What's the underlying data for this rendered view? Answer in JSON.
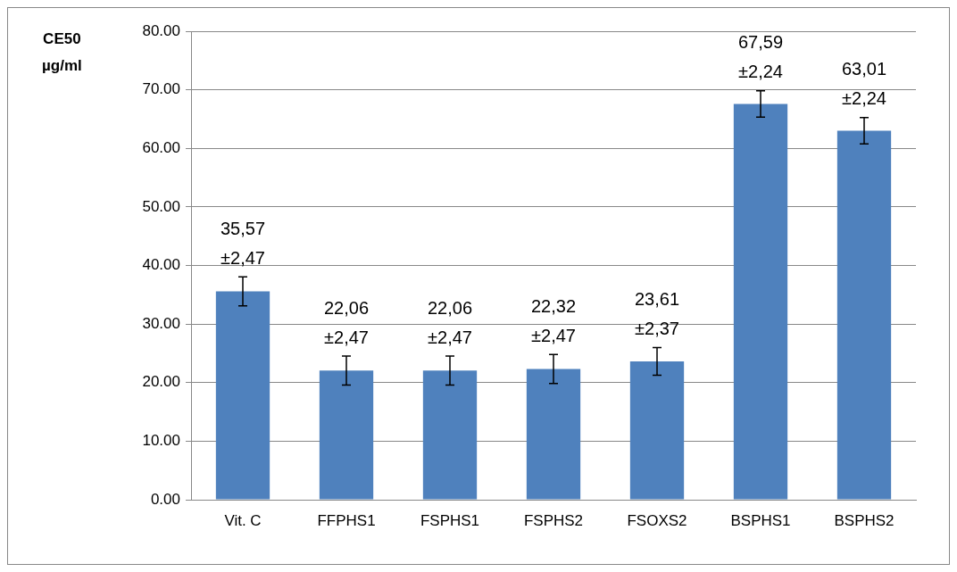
{
  "chart_data": {
    "type": "bar",
    "ylabel": "CE50\nµg/ml",
    "categories": [
      "Vit. C",
      "FFPHS1",
      "FSPHS1",
      "FSPHS2",
      "FSOXS2",
      "BSPHS1",
      "BSPHS2"
    ],
    "values": [
      35.57,
      22.06,
      22.06,
      22.32,
      23.61,
      67.59,
      63.01
    ],
    "errors": [
      2.47,
      2.47,
      2.47,
      2.47,
      2.37,
      2.24,
      2.24
    ],
    "value_labels": [
      "35,57\n±2,47",
      "22,06\n±2,47",
      "22,06\n±2,47",
      "22,32\n±2,47",
      "23,61\n±2,37",
      "67,59\n±2,24",
      "63,01\n±2,24"
    ],
    "color": "#4f81bd",
    "ylim": [
      0,
      80
    ],
    "yticks": [
      {
        "value": 0,
        "label": "0.00"
      },
      {
        "value": 10,
        "label": "10.00"
      },
      {
        "value": 20,
        "label": "20.00"
      },
      {
        "value": 30,
        "label": "30.00"
      },
      {
        "value": 40,
        "label": "40.00"
      },
      {
        "value": 50,
        "label": "50.00"
      },
      {
        "value": 60,
        "label": "60.00"
      },
      {
        "value": 70,
        "label": "70.00"
      },
      {
        "value": 80,
        "label": "80.00"
      }
    ],
    "grid": "y",
    "legend": false
  }
}
